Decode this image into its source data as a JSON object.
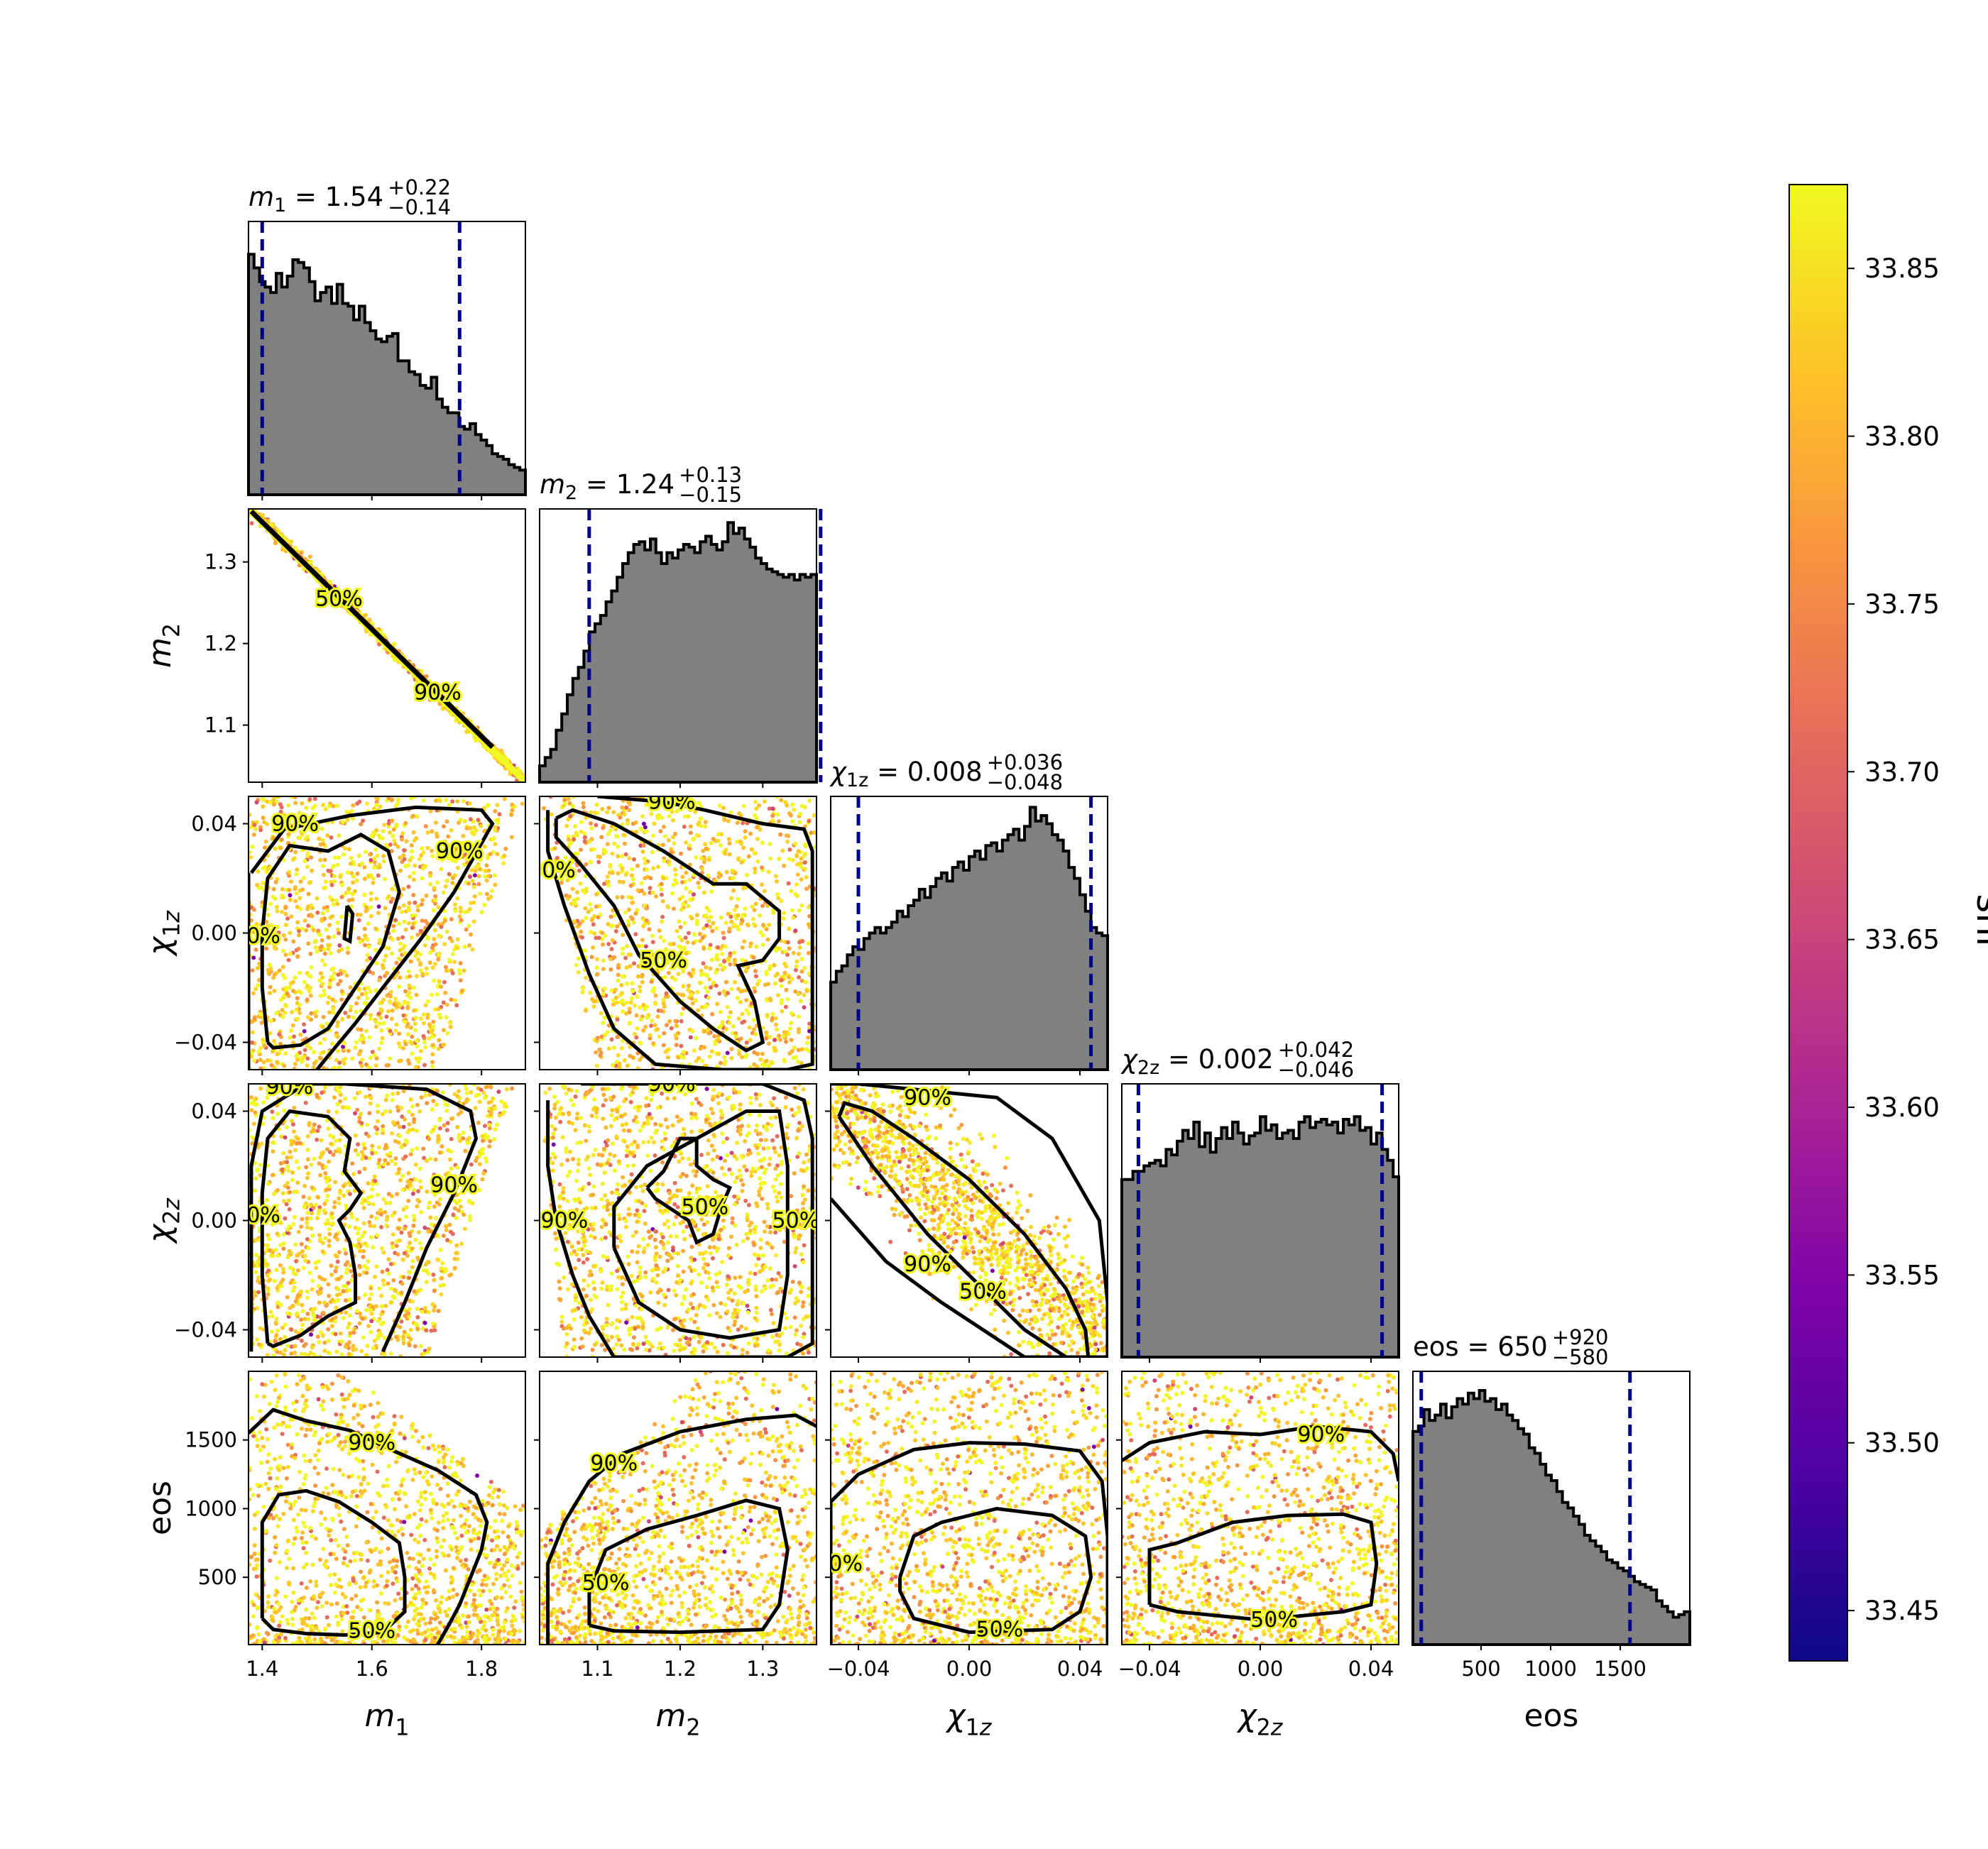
{
  "chart_data": {
    "type": "corner",
    "parameters": [
      {
        "key": "m1",
        "label": "m₁",
        "range": [
          1.375,
          1.88
        ],
        "ticks": [
          1.4,
          1.6,
          1.8
        ],
        "tick_labels": [
          "1.4",
          "1.6",
          "1.8"
        ],
        "title": "m₁ = 1.54",
        "title_sup": "+0.22",
        "title_sub": "−0.14",
        "median": 1.54,
        "lower": 1.4,
        "upper": 1.76,
        "hist": [
          0.88,
          0.83,
          0.78,
          0.76,
          0.74,
          0.81,
          0.76,
          0.8,
          0.86,
          0.85,
          0.83,
          0.78,
          0.71,
          0.74,
          0.76,
          0.7,
          0.77,
          0.7,
          0.69,
          0.64,
          0.69,
          0.63,
          0.6,
          0.57,
          0.56,
          0.58,
          0.59,
          0.49,
          0.49,
          0.45,
          0.44,
          0.4,
          0.39,
          0.43,
          0.35,
          0.32,
          0.3,
          0.3,
          0.25,
          0.24,
          0.26,
          0.22,
          0.2,
          0.18,
          0.15,
          0.14,
          0.13,
          0.11,
          0.1,
          0.09
        ]
      },
      {
        "key": "m2",
        "label": "m₂",
        "range": [
          1.03,
          1.365
        ],
        "ticks": [
          1.1,
          1.2,
          1.3
        ],
        "tick_labels": [
          "1.1",
          "1.2",
          "1.3"
        ],
        "title": "m₂ = 1.24",
        "title_sup": "+0.13",
        "title_sub": "−0.15",
        "median": 1.24,
        "lower": 1.09,
        "upper": 1.37,
        "hist": [
          0.06,
          0.09,
          0.12,
          0.19,
          0.25,
          0.32,
          0.38,
          0.42,
          0.48,
          0.55,
          0.58,
          0.61,
          0.66,
          0.7,
          0.75,
          0.8,
          0.84,
          0.87,
          0.88,
          0.85,
          0.89,
          0.84,
          0.8,
          0.84,
          0.82,
          0.85,
          0.87,
          0.86,
          0.84,
          0.88,
          0.9,
          0.87,
          0.85,
          0.88,
          0.95,
          0.91,
          0.93,
          0.89,
          0.86,
          0.82,
          0.8,
          0.78,
          0.77,
          0.76,
          0.75,
          0.76,
          0.74,
          0.76,
          0.75,
          0.76
        ]
      },
      {
        "key": "chi1z",
        "label": "χ₁z",
        "range": [
          -0.05,
          0.05
        ],
        "ticks": [
          -0.04,
          0.0,
          0.04
        ],
        "tick_labels": [
          "−0.04",
          "0.00",
          "0.04"
        ],
        "title": "χ₁z = 0.008",
        "title_sup": "+0.036",
        "title_sub": "−0.048",
        "median": 0.008,
        "lower": -0.04,
        "upper": 0.044,
        "hist": [
          0.32,
          0.36,
          0.38,
          0.42,
          0.45,
          0.44,
          0.48,
          0.5,
          0.52,
          0.5,
          0.52,
          0.54,
          0.58,
          0.56,
          0.6,
          0.62,
          0.66,
          0.63,
          0.67,
          0.7,
          0.72,
          0.69,
          0.74,
          0.76,
          0.73,
          0.78,
          0.8,
          0.77,
          0.82,
          0.83,
          0.8,
          0.84,
          0.86,
          0.88,
          0.84,
          0.89,
          0.96,
          0.91,
          0.93,
          0.9,
          0.86,
          0.84,
          0.8,
          0.74,
          0.7,
          0.64,
          0.58,
          0.52,
          0.5,
          0.49
        ]
      },
      {
        "key": "chi2z",
        "label": "χ₂z",
        "range": [
          -0.05,
          0.05
        ],
        "ticks": [
          -0.04,
          0.0,
          0.04
        ],
        "tick_labels": [
          "−0.04",
          "0.00",
          "0.04"
        ],
        "title": "χ₂z = 0.002",
        "title_sup": "+0.042",
        "title_sub": "−0.046",
        "median": 0.002,
        "lower": -0.044,
        "upper": 0.044,
        "hist": [
          0.65,
          0.65,
          0.68,
          0.68,
          0.7,
          0.71,
          0.72,
          0.7,
          0.76,
          0.74,
          0.79,
          0.83,
          0.8,
          0.86,
          0.77,
          0.82,
          0.75,
          0.8,
          0.84,
          0.8,
          0.86,
          0.82,
          0.78,
          0.81,
          0.82,
          0.88,
          0.83,
          0.85,
          0.8,
          0.82,
          0.83,
          0.8,
          0.86,
          0.88,
          0.84,
          0.86,
          0.87,
          0.85,
          0.86,
          0.82,
          0.87,
          0.85,
          0.88,
          0.83,
          0.84,
          0.78,
          0.82,
          0.76,
          0.72,
          0.66
        ]
      },
      {
        "key": "eos",
        "label": "eos",
        "range": [
          10,
          2000
        ],
        "ticks": [
          500,
          1000,
          1500
        ],
        "tick_labels": [
          "500",
          "1000",
          "1500"
        ],
        "title": "eos = 650",
        "title_sup": "+920",
        "title_sub": "−580",
        "median": 650,
        "lower": 70,
        "upper": 1570,
        "hist": [
          0.78,
          0.8,
          0.86,
          0.82,
          0.84,
          0.88,
          0.83,
          0.87,
          0.9,
          0.88,
          0.92,
          0.9,
          0.93,
          0.89,
          0.9,
          0.86,
          0.88,
          0.84,
          0.82,
          0.79,
          0.77,
          0.72,
          0.7,
          0.66,
          0.62,
          0.6,
          0.56,
          0.52,
          0.5,
          0.47,
          0.44,
          0.4,
          0.38,
          0.36,
          0.34,
          0.31,
          0.3,
          0.28,
          0.27,
          0.25,
          0.23,
          0.22,
          0.21,
          0.2,
          0.16,
          0.14,
          0.12,
          0.1,
          0.11,
          0.12
        ]
      }
    ],
    "contour_levels": [
      "50%",
      "90%"
    ],
    "scatter_color": "snr",
    "colorbar": {
      "label": "snr",
      "range": [
        33.435,
        33.875
      ],
      "ticks": [
        33.45,
        33.5,
        33.55,
        33.6,
        33.65,
        33.7,
        33.75,
        33.8,
        33.85
      ],
      "tick_labels": [
        "33.45",
        "33.50",
        "33.55",
        "33.60",
        "33.65",
        "33.70",
        "33.75",
        "33.80",
        "33.85"
      ],
      "colormap": "plasma"
    },
    "grid": false,
    "colors": {
      "hist_fill": "#808080",
      "hist_edge": "#000000",
      "quantile_line": "#00008b",
      "contour": "#000000"
    }
  }
}
